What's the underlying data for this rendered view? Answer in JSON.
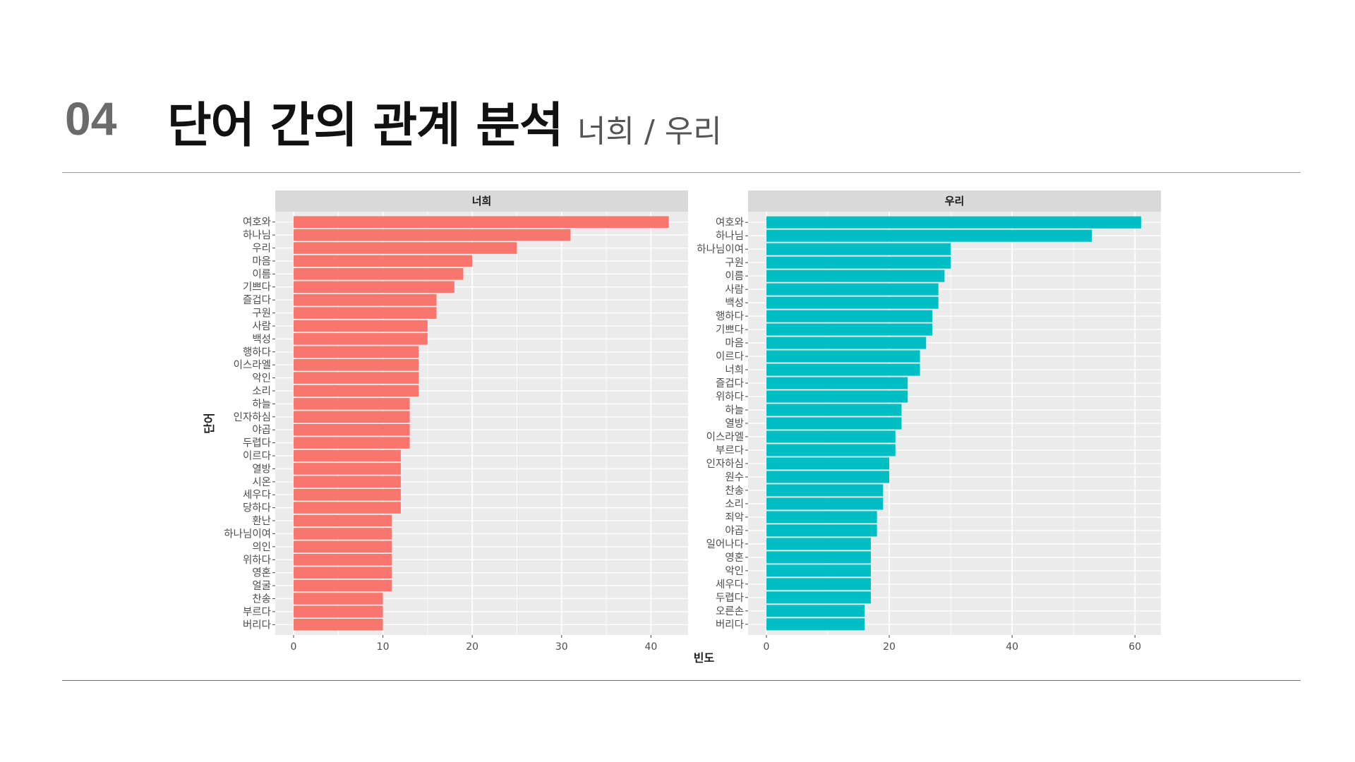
{
  "header": {
    "section_number": "04",
    "title": "단어 간의 관계 분석",
    "subtitle": "너희 / 우리"
  },
  "chart_data": {
    "type": "bar",
    "orientation": "horizontal",
    "xlabel": "빈도",
    "ylabel": "단어",
    "colors": {
      "panel_1": "#F8766D",
      "panel_2": "#00BFC4",
      "panel_bg": "#EBEBEB",
      "strip_bg": "#D9D9D9"
    },
    "panels": [
      {
        "title": "너희",
        "xlim": [
          0,
          44
        ],
        "xticks": [
          0,
          10,
          20,
          30,
          40
        ],
        "categories": [
          "여호와",
          "하나님",
          "우리",
          "마음",
          "이름",
          "기쁘다",
          "즐겁다",
          "구원",
          "사람",
          "백성",
          "행하다",
          "이스라엘",
          "악인",
          "소리",
          "하늘",
          "인자하심",
          "야곱",
          "두렵다",
          "이르다",
          "열방",
          "시온",
          "세우다",
          "당하다",
          "환난",
          "하나님이여",
          "의인",
          "위하다",
          "영혼",
          "얼굴",
          "찬송",
          "부르다",
          "버리다"
        ],
        "values": [
          42,
          31,
          25,
          20,
          19,
          18,
          16,
          16,
          15,
          15,
          14,
          14,
          14,
          14,
          13,
          13,
          13,
          13,
          12,
          12,
          12,
          12,
          12,
          11,
          11,
          11,
          11,
          11,
          11,
          10,
          10,
          10
        ]
      },
      {
        "title": "우리",
        "xlim": [
          0,
          64
        ],
        "xticks": [
          0,
          20,
          40,
          60
        ],
        "categories": [
          "여호와",
          "하나님",
          "하나님이여",
          "구원",
          "이름",
          "사람",
          "백성",
          "행하다",
          "기쁘다",
          "마음",
          "이르다",
          "너희",
          "즐겁다",
          "위하다",
          "하늘",
          "열방",
          "이스라엘",
          "부르다",
          "인자하심",
          "원수",
          "찬송",
          "소리",
          "죄악",
          "야곱",
          "일어나다",
          "영혼",
          "악인",
          "세우다",
          "두렵다",
          "오른손",
          "버리다"
        ],
        "values": [
          61,
          53,
          30,
          30,
          29,
          28,
          28,
          27,
          27,
          26,
          25,
          25,
          23,
          23,
          22,
          22,
          21,
          21,
          20,
          20,
          19,
          19,
          18,
          18,
          17,
          17,
          17,
          17,
          17,
          16,
          16
        ]
      }
    ]
  }
}
